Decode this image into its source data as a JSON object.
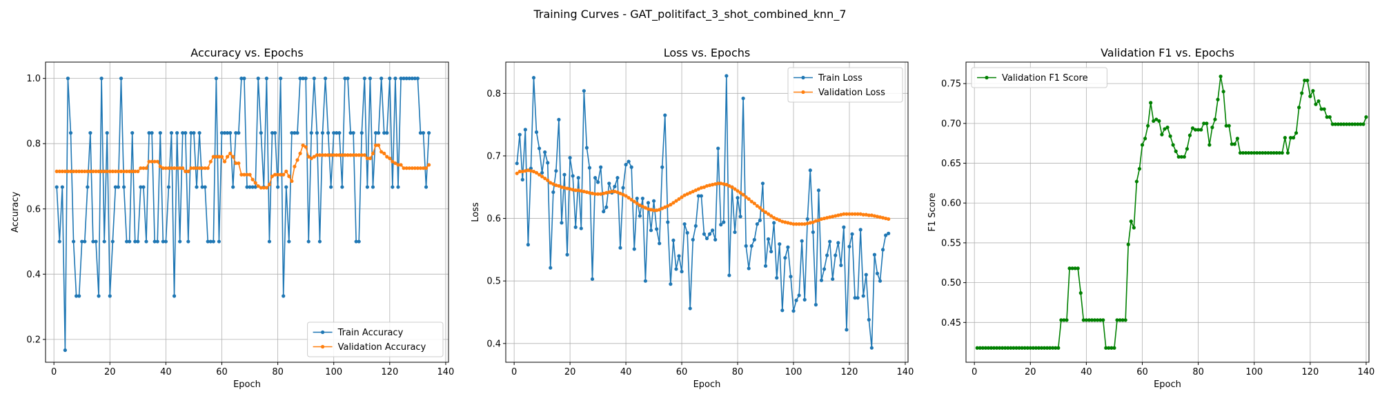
{
  "figure_title": "Training Curves - GAT_politifact_3_shot_combined_knn_7",
  "chart_data": [
    {
      "type": "line",
      "title": "Accuracy vs. Epochs",
      "xlabel": "Epoch",
      "ylabel": "Accuracy",
      "xlim": [
        -3,
        141
      ],
      "ylim": [
        0.13,
        1.05
      ],
      "xticks": [
        0,
        20,
        40,
        60,
        80,
        100,
        120,
        140
      ],
      "yticks": [
        0.2,
        0.4,
        0.6,
        0.8,
        1.0
      ],
      "ytick_labels": [
        "0.2",
        "0.4",
        "0.6",
        "0.8",
        "1.0"
      ],
      "grid": true,
      "legend_position": "lower-right",
      "series": [
        {
          "name": "Train Accuracy",
          "color": "#1f77b4",
          "x_start": 1,
          "values": [
            0.667,
            0.5,
            0.667,
            0.167,
            1.0,
            0.833,
            0.5,
            0.333,
            0.333,
            0.5,
            0.5,
            0.667,
            0.833,
            0.5,
            0.5,
            0.333,
            1.0,
            0.5,
            0.833,
            0.333,
            0.5,
            0.667,
            0.667,
            1.0,
            0.667,
            0.5,
            0.5,
            0.833,
            0.5,
            0.5,
            0.667,
            0.667,
            0.5,
            0.833,
            0.833,
            0.5,
            0.5,
            0.833,
            0.5,
            0.5,
            0.667,
            0.833,
            0.333,
            0.833,
            0.5,
            0.833,
            0.833,
            0.5,
            0.833,
            0.833,
            0.667,
            0.833,
            0.667,
            0.667,
            0.5,
            0.5,
            0.5,
            1.0,
            0.5,
            0.833,
            0.833,
            0.833,
            0.833,
            0.667,
            0.833,
            0.833,
            1.0,
            1.0,
            0.667,
            0.667,
            0.667,
            0.667,
            1.0,
            0.833,
            0.667,
            1.0,
            0.5,
            0.833,
            0.833,
            0.667,
            1.0,
            0.333,
            0.667,
            0.5,
            0.833,
            0.833,
            0.833,
            1.0,
            1.0,
            1.0,
            0.5,
            0.833,
            1.0,
            0.833,
            0.5,
            0.833,
            1.0,
            0.833,
            0.667,
            0.833,
            0.833,
            0.833,
            0.667,
            1.0,
            1.0,
            0.833,
            0.833,
            0.5,
            0.5,
            0.833,
            1.0,
            0.667,
            1.0,
            0.667,
            0.833,
            0.833,
            1.0,
            0.833,
            0.833,
            1.0,
            0.667,
            1.0,
            0.667,
            1.0,
            1.0,
            1.0,
            1.0,
            1.0,
            1.0,
            1.0,
            0.833,
            0.833,
            0.667,
            0.833
          ]
        },
        {
          "name": "Validation Accuracy",
          "color": "#ff7f0e",
          "x_start": 1,
          "values": [
            0.715,
            0.715,
            0.715,
            0.715,
            0.715,
            0.715,
            0.715,
            0.715,
            0.715,
            0.715,
            0.715,
            0.715,
            0.715,
            0.715,
            0.715,
            0.715,
            0.715,
            0.715,
            0.715,
            0.715,
            0.715,
            0.715,
            0.715,
            0.715,
            0.715,
            0.715,
            0.715,
            0.715,
            0.715,
            0.715,
            0.725,
            0.725,
            0.725,
            0.745,
            0.745,
            0.745,
            0.745,
            0.73,
            0.725,
            0.725,
            0.725,
            0.725,
            0.725,
            0.725,
            0.725,
            0.725,
            0.715,
            0.715,
            0.725,
            0.725,
            0.725,
            0.725,
            0.725,
            0.725,
            0.725,
            0.745,
            0.76,
            0.76,
            0.76,
            0.76,
            0.745,
            0.76,
            0.77,
            0.76,
            0.74,
            0.74,
            0.705,
            0.705,
            0.705,
            0.705,
            0.69,
            0.68,
            0.67,
            0.665,
            0.665,
            0.665,
            0.675,
            0.7,
            0.705,
            0.705,
            0.705,
            0.705,
            0.715,
            0.7,
            0.685,
            0.73,
            0.75,
            0.77,
            0.795,
            0.79,
            0.76,
            0.755,
            0.76,
            0.765,
            0.765,
            0.765,
            0.765,
            0.765,
            0.765,
            0.765,
            0.765,
            0.765,
            0.765,
            0.765,
            0.765,
            0.765,
            0.765,
            0.765,
            0.765,
            0.765,
            0.765,
            0.755,
            0.755,
            0.77,
            0.795,
            0.795,
            0.775,
            0.77,
            0.76,
            0.755,
            0.745,
            0.74,
            0.735,
            0.735,
            0.725,
            0.725,
            0.725,
            0.725,
            0.725,
            0.725,
            0.725,
            0.725,
            0.725,
            0.735
          ]
        }
      ]
    },
    {
      "type": "line",
      "title": "Loss vs. Epochs",
      "xlabel": "Epoch",
      "ylabel": "Loss",
      "xlim": [
        -3,
        141
      ],
      "ylim": [
        0.37,
        0.85
      ],
      "xticks": [
        0,
        20,
        40,
        60,
        80,
        100,
        120,
        140
      ],
      "yticks": [
        0.4,
        0.5,
        0.6,
        0.7,
        0.8
      ],
      "ytick_labels": [
        "0.4",
        "0.5",
        "0.6",
        "0.7",
        "0.8"
      ],
      "grid": true,
      "legend_position": "upper-right",
      "series": [
        {
          "name": "Train Loss",
          "color": "#1f77b4",
          "x_start": 1,
          "values": [
            0.688,
            0.734,
            0.662,
            0.742,
            0.558,
            0.68,
            0.825,
            0.738,
            0.712,
            0.673,
            0.706,
            0.689,
            0.521,
            0.642,
            0.676,
            0.758,
            0.593,
            0.67,
            0.542,
            0.697,
            0.668,
            0.586,
            0.665,
            0.584,
            0.804,
            0.713,
            0.681,
            0.503,
            0.665,
            0.658,
            0.682,
            0.611,
            0.618,
            0.656,
            0.641,
            0.651,
            0.665,
            0.553,
            0.649,
            0.686,
            0.691,
            0.682,
            0.551,
            0.632,
            0.604,
            0.632,
            0.5,
            0.625,
            0.581,
            0.628,
            0.583,
            0.56,
            0.682,
            0.765,
            0.594,
            0.495,
            0.565,
            0.519,
            0.54,
            0.515,
            0.591,
            0.577,
            0.456,
            0.566,
            0.588,
            0.636,
            0.636,
            0.575,
            0.568,
            0.575,
            0.581,
            0.566,
            0.712,
            0.59,
            0.594,
            0.828,
            0.509,
            0.65,
            0.578,
            0.633,
            0.603,
            0.792,
            0.556,
            0.52,
            0.556,
            0.566,
            0.591,
            0.597,
            0.656,
            0.524,
            0.567,
            0.547,
            0.593,
            0.505,
            0.559,
            0.453,
            0.537,
            0.554,
            0.507,
            0.452,
            0.469,
            0.477,
            0.564,
            0.47,
            0.599,
            0.677,
            0.578,
            0.462,
            0.645,
            0.501,
            0.519,
            0.541,
            0.563,
            0.503,
            0.541,
            0.561,
            0.525,
            0.586,
            0.422,
            0.555,
            0.575,
            0.473,
            0.473,
            0.582,
            0.476,
            0.51,
            0.438,
            0.393,
            0.542,
            0.512,
            0.5,
            0.55,
            0.573,
            0.576
          ]
        },
        {
          "name": "Validation Loss",
          "color": "#ff7f0e",
          "x_start": 1,
          "values": [
            0.672,
            0.675,
            0.675,
            0.676,
            0.677,
            0.676,
            0.675,
            0.673,
            0.67,
            0.667,
            0.664,
            0.661,
            0.657,
            0.655,
            0.653,
            0.652,
            0.65,
            0.649,
            0.648,
            0.647,
            0.646,
            0.645,
            0.645,
            0.644,
            0.643,
            0.642,
            0.641,
            0.64,
            0.639,
            0.639,
            0.639,
            0.64,
            0.641,
            0.642,
            0.643,
            0.643,
            0.642,
            0.64,
            0.638,
            0.636,
            0.633,
            0.63,
            0.627,
            0.624,
            0.621,
            0.619,
            0.617,
            0.615,
            0.614,
            0.613,
            0.613,
            0.614,
            0.616,
            0.618,
            0.62,
            0.622,
            0.625,
            0.628,
            0.631,
            0.634,
            0.637,
            0.639,
            0.641,
            0.643,
            0.645,
            0.647,
            0.649,
            0.65,
            0.652,
            0.653,
            0.654,
            0.655,
            0.656,
            0.656,
            0.655,
            0.654,
            0.652,
            0.65,
            0.647,
            0.644,
            0.641,
            0.638,
            0.634,
            0.631,
            0.627,
            0.624,
            0.62,
            0.617,
            0.613,
            0.61,
            0.607,
            0.604,
            0.601,
            0.599,
            0.597,
            0.595,
            0.594,
            0.593,
            0.592,
            0.591,
            0.591,
            0.591,
            0.591,
            0.591,
            0.592,
            0.593,
            0.594,
            0.596,
            0.597,
            0.599,
            0.6,
            0.601,
            0.602,
            0.603,
            0.604,
            0.605,
            0.606,
            0.607,
            0.607,
            0.607,
            0.607,
            0.607,
            0.607,
            0.607,
            0.606,
            0.606,
            0.605,
            0.605,
            0.604,
            0.603,
            0.602,
            0.601,
            0.6,
            0.599
          ]
        }
      ]
    },
    {
      "type": "line",
      "title": "Validation F1 vs. Epochs",
      "xlabel": "Epoch",
      "ylabel": "F1 Score",
      "xlim": [
        -3,
        141
      ],
      "ylim": [
        0.4,
        0.777
      ],
      "xticks": [
        0,
        20,
        40,
        60,
        80,
        100,
        120,
        140
      ],
      "yticks": [
        0.45,
        0.5,
        0.55,
        0.6,
        0.65,
        0.7,
        0.75
      ],
      "ytick_labels": [
        "0.45",
        "0.50",
        "0.55",
        "0.60",
        "0.65",
        "0.70",
        "0.75"
      ],
      "grid": true,
      "legend_position": "upper-left",
      "series": [
        {
          "name": "Validation F1 Score",
          "color": "#008000",
          "x_start": 1,
          "values": [
            0.418,
            0.418,
            0.418,
            0.418,
            0.418,
            0.418,
            0.418,
            0.418,
            0.418,
            0.418,
            0.418,
            0.418,
            0.418,
            0.418,
            0.418,
            0.418,
            0.418,
            0.418,
            0.418,
            0.418,
            0.418,
            0.418,
            0.418,
            0.418,
            0.418,
            0.418,
            0.418,
            0.418,
            0.418,
            0.418,
            0.453,
            0.453,
            0.453,
            0.518,
            0.518,
            0.518,
            0.518,
            0.487,
            0.453,
            0.453,
            0.453,
            0.453,
            0.453,
            0.453,
            0.453,
            0.453,
            0.418,
            0.418,
            0.418,
            0.418,
            0.453,
            0.453,
            0.453,
            0.453,
            0.548,
            0.577,
            0.569,
            0.627,
            0.643,
            0.673,
            0.681,
            0.697,
            0.726,
            0.703,
            0.705,
            0.703,
            0.686,
            0.693,
            0.695,
            0.684,
            0.673,
            0.665,
            0.658,
            0.658,
            0.658,
            0.668,
            0.685,
            0.694,
            0.692,
            0.692,
            0.692,
            0.7,
            0.7,
            0.673,
            0.695,
            0.705,
            0.73,
            0.759,
            0.74,
            0.697,
            0.697,
            0.674,
            0.674,
            0.681,
            0.663,
            0.663,
            0.663,
            0.663,
            0.663,
            0.663,
            0.663,
            0.663,
            0.663,
            0.663,
            0.663,
            0.663,
            0.663,
            0.663,
            0.663,
            0.663,
            0.682,
            0.663,
            0.682,
            0.682,
            0.688,
            0.72,
            0.738,
            0.754,
            0.754,
            0.734,
            0.741,
            0.724,
            0.728,
            0.718,
            0.718,
            0.708,
            0.708,
            0.699,
            0.699,
            0.699,
            0.699,
            0.699,
            0.699,
            0.699,
            0.699,
            0.699,
            0.699,
            0.699,
            0.699,
            0.708
          ]
        }
      ]
    }
  ]
}
